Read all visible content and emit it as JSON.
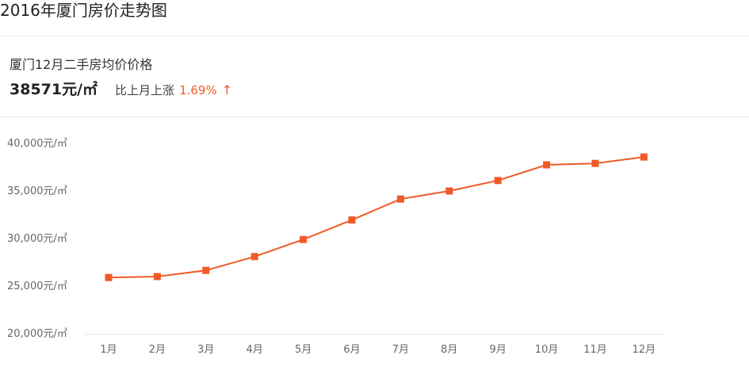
{
  "header": {
    "title": "2016年厦门房价走势图"
  },
  "summary": {
    "subtitle": "厦门12月二手房均价价格",
    "avg_price": "38571元/㎡",
    "change_label": "比上月上涨",
    "change_value": "1.69%",
    "change_arrow": "↑"
  },
  "colors": {
    "accent": "#f05a28",
    "axis_text": "#666666",
    "axis_line": "#e6e6e6"
  },
  "chart_data": {
    "type": "line",
    "categories": [
      "1月",
      "2月",
      "3月",
      "4月",
      "5月",
      "6月",
      "7月",
      "8月",
      "9月",
      "10月",
      "11月",
      "12月"
    ],
    "series": [
      {
        "values": [
          25900,
          26000,
          26650,
          28100,
          29900,
          31950,
          34150,
          35000,
          36100,
          37750,
          37900,
          38571
        ]
      }
    ],
    "y_ticks": [
      "40,000元/㎡",
      "35,000元/㎡",
      "30,000元/㎡",
      "25,000元/㎡",
      "20,000元/㎡"
    ],
    "ylim": [
      20000,
      40000
    ],
    "grid": false,
    "legend": "none"
  }
}
